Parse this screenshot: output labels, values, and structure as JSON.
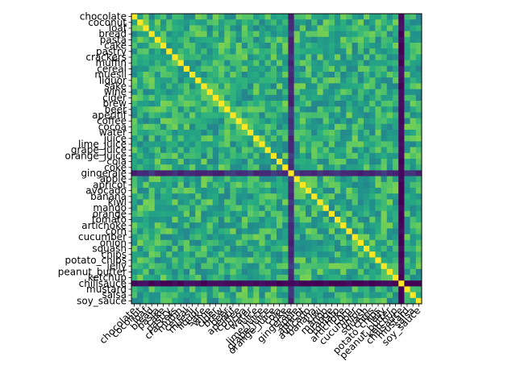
{
  "chart_data": {
    "type": "heatmap",
    "title": "",
    "xlabel": "",
    "ylabel": "",
    "colormap": "viridis",
    "labels": [
      "chocolate",
      "coconut",
      "loaf",
      "bread",
      "pasta",
      "cake",
      "pastry",
      "crackers",
      "muffin",
      "cereal",
      "muesli",
      "liquor",
      "sake",
      "wine",
      "cider",
      "brew",
      "beer",
      "aperitif",
      "coffee",
      "cocoa",
      "water",
      "juice",
      "lime_juice",
      "grape_juice",
      "orange_juice",
      "cola",
      "coke",
      "gingerale",
      "apple",
      "apricot",
      "avocado",
      "banana",
      "kiwi",
      "mango",
      "orange",
      "tomato",
      "artichoke",
      "corn",
      "cucumber",
      "onion",
      "squash",
      "chips",
      "potato_chips",
      "jelly",
      "peanut_butter",
      "ketchup",
      "chilisauce",
      "mustard",
      "salsa",
      "soy_sauce"
    ],
    "diagonal_value": 1.0,
    "low_similarity_items": {
      "gingerale": 0.15,
      "chilisauce": 0.02
    },
    "typical_off_diagonal_range": [
      0.45,
      0.8
    ],
    "value_range": [
      0,
      1
    ]
  }
}
